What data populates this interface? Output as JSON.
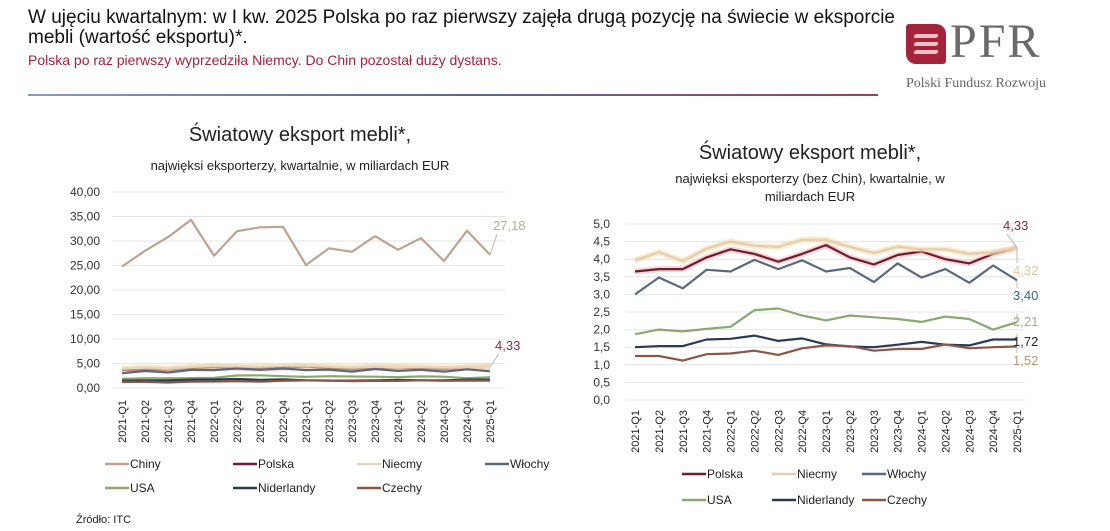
{
  "header": {
    "title": "W ujęciu kwartalnym: w I kw. 2025 Polska po raz pierwszy zajęła drugą pozycję na świecie w eksporcie mebli (wartość eksportu)*.",
    "subtitle": "Polska po raz pierwszy wyprzedziła Niemcy. Do Chin pozostał duży dystans."
  },
  "logo": {
    "text": "PFR",
    "subtitle": "Polski Fundusz Rozwoju",
    "color": "#a3243b"
  },
  "source": "Źródło: ITC",
  "chart_data": [
    {
      "type": "line",
      "title": "Światowy eksport mebli*,",
      "subtitle": "najwięksi eksporterzy, kwartalnie, w miliardach EUR",
      "xlabel": "",
      "ylabel": "",
      "ylim": [
        0,
        40
      ],
      "yticks": [
        "0,00",
        "5,00",
        "10,00",
        "15,00",
        "20,00",
        "25,00",
        "30,00",
        "35,00",
        "40,00"
      ],
      "grid": true,
      "legend_position": "bottom",
      "categories": [
        "2021-Q1",
        "2021-Q2",
        "2021-Q3",
        "2021-Q4",
        "2022-Q1",
        "2022-Q2",
        "2022-Q3",
        "2022-Q4",
        "2023-Q1",
        "2023-Q2",
        "2023-Q3",
        "2023-Q4",
        "2024-Q1",
        "2024-Q2",
        "2024-Q3",
        "2024-Q4",
        "2025-Q1"
      ],
      "series": [
        {
          "name": "Chiny",
          "color": "#bfa290",
          "values": [
            24.8,
            28.0,
            30.8,
            34.3,
            27.0,
            32.0,
            32.8,
            32.9,
            25.1,
            28.5,
            27.8,
            31.0,
            28.2,
            30.6,
            25.9,
            32.1,
            27.18
          ]
        },
        {
          "name": "Polska",
          "color": "#6e1d2c",
          "values": [
            3.65,
            3.72,
            3.72,
            4.05,
            4.28,
            4.15,
            3.93,
            4.15,
            4.4,
            4.05,
            3.85,
            4.12,
            4.22,
            4.0,
            3.88,
            4.15,
            4.33
          ]
        },
        {
          "name": "Niecmy",
          "color": "#e6d6be",
          "values": [
            3.97,
            4.2,
            3.95,
            4.3,
            4.5,
            4.38,
            4.35,
            4.55,
            4.55,
            4.35,
            4.18,
            4.35,
            4.28,
            4.28,
            4.15,
            4.2,
            4.32
          ]
        },
        {
          "name": "Włochy",
          "color": "#5a6880",
          "values": [
            3.0,
            3.48,
            3.17,
            3.7,
            3.65,
            3.98,
            3.72,
            3.97,
            3.65,
            3.75,
            3.35,
            3.88,
            3.48,
            3.72,
            3.33,
            3.82,
            3.4
          ]
        },
        {
          "name": "USA",
          "color": "#8aa870",
          "values": [
            1.87,
            2.0,
            1.95,
            2.02,
            2.08,
            2.55,
            2.6,
            2.4,
            2.26,
            2.4,
            2.35,
            2.3,
            2.22,
            2.37,
            2.3,
            2.0,
            2.21
          ]
        },
        {
          "name": "Niderlandy",
          "color": "#2b3a55",
          "values": [
            1.5,
            1.53,
            1.53,
            1.72,
            1.74,
            1.83,
            1.68,
            1.75,
            1.58,
            1.52,
            1.5,
            1.57,
            1.65,
            1.57,
            1.55,
            1.72,
            1.72
          ]
        },
        {
          "name": "Czechy",
          "color": "#8a5646",
          "values": [
            1.25,
            1.25,
            1.12,
            1.3,
            1.32,
            1.4,
            1.28,
            1.47,
            1.55,
            1.53,
            1.4,
            1.45,
            1.45,
            1.58,
            1.47,
            1.5,
            1.52
          ]
        }
      ],
      "data_labels": [
        {
          "series": "Chiny",
          "text": "27,18",
          "color": "#c9a58f"
        },
        {
          "series": "Polska",
          "text": "4,33",
          "color": "#8a2a40"
        }
      ]
    },
    {
      "type": "line",
      "title": "Światowy eksport mebli*,",
      "subtitle": "najwięksi eksporterzy (bez Chin), kwartalnie, w miliardach EUR",
      "subtitle_lines": [
        "najwięksi eksporterzy (bez Chin), kwartalnie, w",
        "miliardach EUR"
      ],
      "xlabel": "",
      "ylabel": "",
      "ylim": [
        0,
        5
      ],
      "yticks": [
        "0,0",
        "0,5",
        "1,0",
        "1,5",
        "2,0",
        "2,5",
        "3,0",
        "3,5",
        "4,0",
        "4,5",
        "5,0"
      ],
      "grid": true,
      "legend_position": "bottom",
      "categories": [
        "2021-Q1",
        "2021-Q2",
        "2021-Q3",
        "2021-Q4",
        "2022-Q1",
        "2022-Q2",
        "2022-Q3",
        "2022-Q4",
        "2023-Q1",
        "2023-Q2",
        "2023-Q3",
        "2023-Q4",
        "2024-Q1",
        "2024-Q2",
        "2024-Q3",
        "2024-Q4",
        "2025-Q1"
      ],
      "series": [
        {
          "name": "Polska",
          "color": "#6e1d2c",
          "values": [
            3.65,
            3.72,
            3.72,
            4.05,
            4.28,
            4.15,
            3.93,
            4.15,
            4.4,
            4.05,
            3.85,
            4.12,
            4.22,
            4.0,
            3.88,
            4.15,
            4.33
          ]
        },
        {
          "name": "Niecmy",
          "color": "#e0cdb8",
          "values": [
            3.97,
            4.2,
            3.95,
            4.3,
            4.5,
            4.38,
            4.35,
            4.55,
            4.55,
            4.35,
            4.18,
            4.35,
            4.28,
            4.28,
            4.15,
            4.2,
            4.32
          ]
        },
        {
          "name": "Włochy",
          "color": "#5a6880",
          "values": [
            3.0,
            3.48,
            3.17,
            3.7,
            3.65,
            3.98,
            3.72,
            3.97,
            3.65,
            3.75,
            3.35,
            3.88,
            3.48,
            3.72,
            3.33,
            3.82,
            3.4
          ]
        },
        {
          "name": "USA",
          "color": "#8aa870",
          "values": [
            1.87,
            2.0,
            1.95,
            2.02,
            2.08,
            2.55,
            2.6,
            2.4,
            2.26,
            2.4,
            2.35,
            2.3,
            2.22,
            2.37,
            2.3,
            2.0,
            2.21
          ]
        },
        {
          "name": "Niderlandy",
          "color": "#2b3a55",
          "values": [
            1.5,
            1.53,
            1.53,
            1.72,
            1.74,
            1.83,
            1.68,
            1.75,
            1.58,
            1.52,
            1.5,
            1.57,
            1.65,
            1.57,
            1.55,
            1.72,
            1.72
          ]
        },
        {
          "name": "Czechy",
          "color": "#8a5646",
          "values": [
            1.25,
            1.25,
            1.12,
            1.3,
            1.32,
            1.4,
            1.28,
            1.47,
            1.55,
            1.53,
            1.4,
            1.45,
            1.45,
            1.58,
            1.47,
            1.5,
            1.52
          ]
        }
      ],
      "data_labels": [
        {
          "series": "Polska",
          "text": "4,33",
          "color": "#8a2a40"
        },
        {
          "series": "Niecmy",
          "text": "4,32",
          "color": "#e0c89a"
        },
        {
          "series": "Włochy",
          "text": "3,40",
          "color": "#3a6a88"
        },
        {
          "series": "USA",
          "text": "2,21",
          "color": "#9ab880"
        },
        {
          "series": "Niderlandy",
          "text": "1,72",
          "color": "#1e2a40"
        },
        {
          "series": "Czechy",
          "text": "1,52",
          "color": "#c09070"
        }
      ]
    }
  ]
}
